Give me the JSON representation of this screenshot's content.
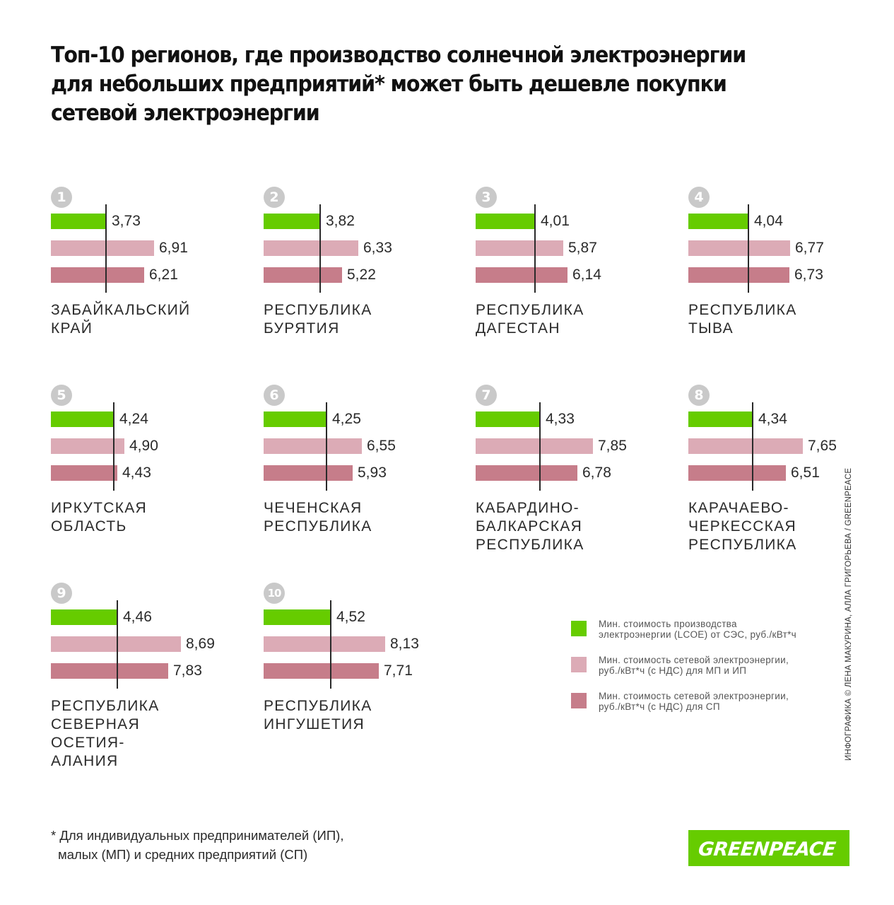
{
  "title_lines": [
    "Топ-10 регионов, где производство солнечной электроэнергии",
    "для небольших предприятий* может быть дешевле покупки",
    "сетевой электроэнергии"
  ],
  "colors": {
    "lcoe": "#66cc00",
    "grid_small": "#dcabb6",
    "grid_medium": "#c67d8a"
  },
  "chart_data": {
    "type": "bar",
    "orientation": "horizontal",
    "value_format": "comma-decimal",
    "series_names": [
      "Мин. стоимость производства электроэнергии (LCOE) от СЭС, руб./кВт*ч",
      "Мин. стоимость сетевой электроэнергии, руб./кВт*ч (с НДС) для МП и ИП",
      "Мин. стоимость сетевой электроэнергии, руб./кВт*ч (с НДС) для СП"
    ],
    "regions": [
      {
        "rank": "1",
        "name_lines": [
          "ЗАБАЙКАЛЬСКИЙ",
          "КРАЙ"
        ],
        "values": [
          3.73,
          6.91,
          6.21
        ],
        "labels": [
          "3,73",
          "6,91",
          "6,21"
        ]
      },
      {
        "rank": "2",
        "name_lines": [
          "РЕСПУБЛИКА",
          "БУРЯТИЯ"
        ],
        "values": [
          3.82,
          6.33,
          5.22
        ],
        "labels": [
          "3,82",
          "6,33",
          "5,22"
        ]
      },
      {
        "rank": "3",
        "name_lines": [
          "РЕСПУБЛИКА",
          "ДАГЕСТАН"
        ],
        "values": [
          4.01,
          5.87,
          6.14
        ],
        "labels": [
          "4,01",
          "5,87",
          "6,14"
        ]
      },
      {
        "rank": "4",
        "name_lines": [
          "РЕСПУБЛИКА",
          "ТЫВА"
        ],
        "values": [
          4.04,
          6.77,
          6.73
        ],
        "labels": [
          "4,04",
          "6,77",
          "6,73"
        ]
      },
      {
        "rank": "5",
        "name_lines": [
          "ИРКУТСКАЯ",
          "ОБЛАСТЬ"
        ],
        "values": [
          4.24,
          4.9,
          4.43
        ],
        "labels": [
          "4,24",
          "4,90",
          "4,43"
        ]
      },
      {
        "rank": "6",
        "name_lines": [
          "ЧЕЧЕНСКАЯ",
          "РЕСПУБЛИКА"
        ],
        "values": [
          4.25,
          6.55,
          5.93
        ],
        "labels": [
          "4,25",
          "6,55",
          "5,93"
        ]
      },
      {
        "rank": "7",
        "name_lines": [
          "КАБАРДИНО-",
          "БАЛКАРСКАЯ",
          "РЕСПУБЛИКА"
        ],
        "values": [
          4.33,
          7.85,
          6.78
        ],
        "labels": [
          "4,33",
          "7,85",
          "6,78"
        ]
      },
      {
        "rank": "8",
        "name_lines": [
          "КАРАЧАЕВО-",
          "ЧЕРКЕССКАЯ",
          "РЕСПУБЛИКА"
        ],
        "values": [
          4.34,
          7.65,
          6.51
        ],
        "labels": [
          "4,34",
          "7,65",
          "6,51"
        ]
      },
      {
        "rank": "9",
        "name_lines": [
          "РЕСПУБЛИКА",
          "СЕВЕРНАЯ",
          "ОСЕТИЯ-",
          "АЛАНИЯ"
        ],
        "values": [
          4.46,
          8.69,
          7.83
        ],
        "labels": [
          "4,46",
          "8,69",
          "7,83"
        ]
      },
      {
        "rank": "10",
        "name_lines": [
          "РЕСПУБЛИКА",
          "ИНГУШЕТИЯ"
        ],
        "values": [
          4.52,
          8.13,
          7.71
        ],
        "labels": [
          "4,52",
          "8,13",
          "7,71"
        ]
      }
    ]
  },
  "legend": [
    {
      "color": "#66cc00",
      "lines": [
        "Мин. стоимость производства",
        "электроэнергии (LCOE) от СЭС, руб./кВт*ч"
      ]
    },
    {
      "color": "#dcabb6",
      "lines": [
        "Мин. стоимость сетевой электроэнергии,",
        "руб./кВт*ч (с НДС) для МП и ИП"
      ]
    },
    {
      "color": "#c67d8a",
      "lines": [
        "Мин. стоимость сетевой электроэнергии,",
        "руб./кВт*ч (с НДС) для СП"
      ]
    }
  ],
  "footnote_lines": [
    "* Для индивидуальных предпринимателей (ИП),",
    "малых (МП) и средних предприятий (СП)"
  ],
  "credit": "ИНФОГРАФИКА © ЛЕНА МАКУРИНА, АЛЛА ГРИГОРЬЕВА / GREENPEACE",
  "logo_text": "GREENPEACE"
}
